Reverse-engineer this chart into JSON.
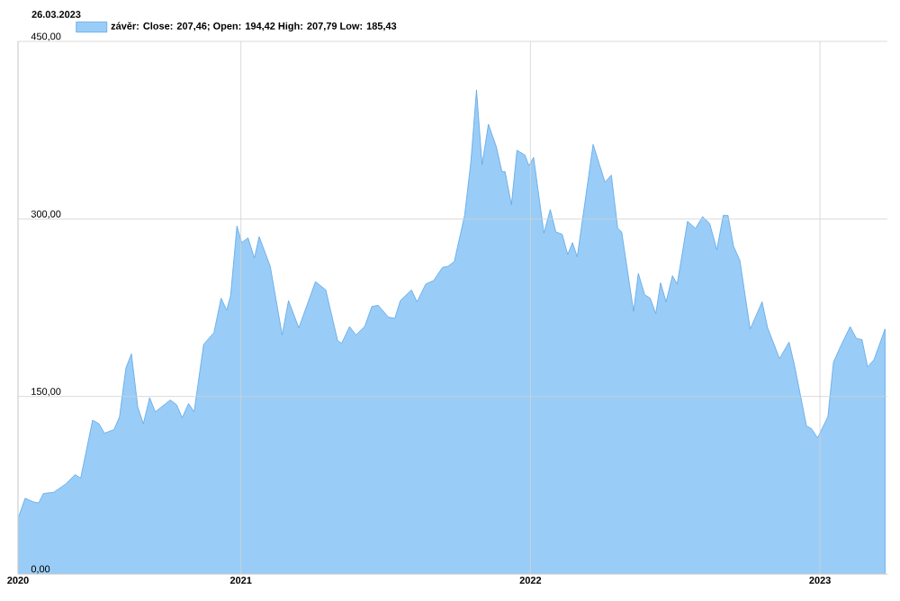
{
  "chart_data": {
    "type": "area",
    "title": "26.03.2023",
    "x": [
      "2020-03-26",
      "2020-04-04",
      "2020-04-14",
      "2020-04-21",
      "2020-04-27",
      "2020-05-10",
      "2020-05-25",
      "2020-06-06",
      "2020-06-13",
      "2020-06-28",
      "2020-07-06",
      "2020-07-13",
      "2020-07-25",
      "2020-08-01",
      "2020-08-09",
      "2020-08-16",
      "2020-08-24",
      "2020-08-31",
      "2020-09-08",
      "2020-09-15",
      "2020-10-04",
      "2020-10-12",
      "2020-10-19",
      "2020-10-27",
      "2020-11-03",
      "2020-11-15",
      "2020-11-28",
      "2020-12-07",
      "2020-12-14",
      "2020-12-19",
      "2020-12-27",
      "2021-01-02",
      "2021-01-10",
      "2021-01-18",
      "2021-01-24",
      "2021-02-07",
      "2021-02-22",
      "2021-03-02",
      "2021-03-15",
      "2021-04-05",
      "2021-04-18",
      "2021-05-03",
      "2021-05-08",
      "2021-05-18",
      "2021-05-26",
      "2021-06-06",
      "2021-06-15",
      "2021-06-23",
      "2021-07-06",
      "2021-07-14",
      "2021-07-21",
      "2021-08-04",
      "2021-08-11",
      "2021-08-22",
      "2021-09-01",
      "2021-09-12",
      "2021-09-19",
      "2021-09-27",
      "2021-10-10",
      "2021-10-18",
      "2021-10-25",
      "2021-11-01",
      "2021-11-09",
      "2021-11-19",
      "2021-11-26",
      "2021-11-30",
      "2021-12-08",
      "2021-12-15",
      "2021-12-25",
      "2021-12-30",
      "2022-01-05",
      "2022-01-18",
      "2022-01-26",
      "2022-02-02",
      "2022-02-10",
      "2022-02-17",
      "2022-02-23",
      "2022-03-01",
      "2022-03-21",
      "2022-04-05",
      "2022-04-13",
      "2022-04-21",
      "2022-04-26",
      "2022-05-11",
      "2022-05-17",
      "2022-05-25",
      "2022-06-01",
      "2022-06-08",
      "2022-06-14",
      "2022-06-21",
      "2022-06-29",
      "2022-07-05",
      "2022-07-18",
      "2022-07-28",
      "2022-08-06",
      "2022-08-15",
      "2022-08-24",
      "2022-09-01",
      "2022-09-07",
      "2022-09-14",
      "2022-09-22",
      "2022-10-05",
      "2022-10-20",
      "2022-10-27",
      "2022-11-11",
      "2022-11-23",
      "2022-11-30",
      "2022-12-15",
      "2022-12-21",
      "2022-12-29",
      "2023-01-11",
      "2023-01-18",
      "2023-01-26",
      "2023-02-08",
      "2023-02-16",
      "2023-02-23",
      "2023-03-02",
      "2023-03-10",
      "2023-03-24"
    ],
    "series": [
      {
        "name": "závěr: Close: 207,46; Open: 194,42 High: 207,79 Low: 185,43",
        "color": "#99cdf7",
        "values": [
          47,
          64,
          61,
          60,
          68,
          69,
          76,
          84,
          81,
          130,
          127,
          119,
          122,
          133,
          174,
          186,
          141,
          127,
          149,
          137,
          147,
          143,
          132,
          144,
          137,
          194,
          204,
          233,
          223,
          235,
          294,
          280,
          284,
          267,
          285,
          260,
          202,
          231,
          208,
          247,
          240,
          197,
          195,
          209,
          202,
          209,
          226,
          227,
          217,
          216,
          231,
          240,
          230,
          245,
          248,
          259,
          260,
          264,
          303,
          349,
          409,
          346,
          380,
          361,
          340,
          340,
          312,
          358,
          354,
          345,
          352,
          288,
          308,
          289,
          287,
          270,
          280,
          268,
          363,
          331,
          337,
          292,
          289,
          222,
          254,
          236,
          233,
          220,
          246,
          230,
          252,
          245,
          298,
          292,
          302,
          296,
          274,
          303,
          303,
          277,
          265,
          207,
          230,
          208,
          182,
          196,
          176,
          125,
          123,
          115,
          133,
          179,
          191,
          209,
          199,
          198,
          175,
          181,
          207
        ]
      }
    ],
    "xlim": [
      "2020-03-26",
      "2023-03-27"
    ],
    "xticks": [
      {
        "value": "2020-03-26",
        "label": "2020"
      },
      {
        "value": "2021-01-01",
        "label": "2021"
      },
      {
        "value": "2022-01-01",
        "label": "2022"
      },
      {
        "value": "2023-01-01",
        "label": "2023"
      }
    ],
    "ylim": [
      0,
      450
    ],
    "yticks": [
      {
        "value": 0,
        "label": "0,00"
      },
      {
        "value": 150,
        "label": "150,00"
      },
      {
        "value": 300,
        "label": "300,00"
      },
      {
        "value": 450,
        "label": "450,00"
      }
    ],
    "grid": true,
    "legend": "top left"
  }
}
